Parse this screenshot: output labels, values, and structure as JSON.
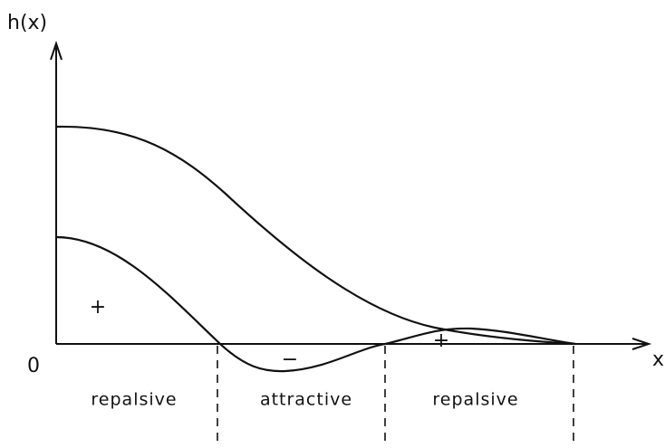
{
  "axes": {
    "y_label": "h(x)",
    "x_label": "x",
    "origin_label": "0"
  },
  "signs": [
    "+",
    "−",
    "+"
  ],
  "regions": [
    "repalsive",
    "attractive",
    "repalsive"
  ]
}
